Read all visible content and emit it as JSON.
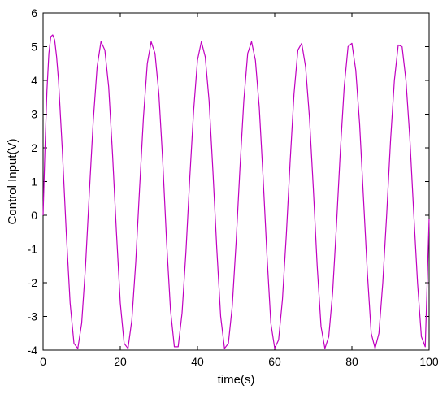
{
  "chart_data": {
    "type": "line",
    "title": "",
    "xlabel": "time(s)",
    "ylabel": "Control Input(V)",
    "xlim": [
      0,
      100
    ],
    "ylim": [
      -4,
      6
    ],
    "x_ticks": [
      0,
      20,
      40,
      60,
      80,
      100
    ],
    "y_ticks": [
      -4,
      -3,
      -2,
      -1,
      0,
      1,
      2,
      3,
      4,
      5,
      6
    ],
    "x_tick_labels": [
      "0",
      "20",
      "40",
      "60",
      "80",
      "100"
    ],
    "y_tick_labels": [
      "-4",
      "-3",
      "-2",
      "-1",
      "0",
      "1",
      "2",
      "3",
      "4",
      "5",
      "6"
    ],
    "grid": false,
    "legend": "none",
    "series": [
      {
        "color": "#c000c0",
        "x": [
          0,
          0.5,
          1,
          1.5,
          2,
          2.5,
          3,
          3.5,
          4,
          5,
          6,
          7,
          8,
          9,
          10,
          11,
          12,
          13,
          14,
          15,
          16,
          17,
          18,
          19,
          20,
          21,
          22,
          23,
          24,
          25,
          26,
          27,
          28,
          29,
          30,
          31,
          32,
          33,
          34,
          35,
          36,
          37,
          38,
          39,
          40,
          41,
          42,
          43,
          44,
          45,
          46,
          47,
          48,
          49,
          50,
          51,
          52,
          53,
          54,
          55,
          56,
          57,
          58,
          59,
          60,
          61,
          62,
          63,
          64,
          65,
          66,
          67,
          68,
          69,
          70,
          71,
          72,
          73,
          74,
          75,
          76,
          77,
          78,
          79,
          80,
          81,
          82,
          83,
          84,
          85,
          86,
          87,
          88,
          89,
          90,
          91,
          92,
          93,
          94,
          95,
          96,
          97,
          98,
          99,
          100
        ],
        "y": [
          0.0,
          2.0,
          3.7,
          4.8,
          5.3,
          5.35,
          5.2,
          4.7,
          4.0,
          1.9,
          -0.5,
          -2.6,
          -3.8,
          -3.95,
          -3.2,
          -1.5,
          0.7,
          2.8,
          4.4,
          5.15,
          4.9,
          3.8,
          1.8,
          -0.5,
          -2.6,
          -3.8,
          -3.95,
          -3.1,
          -1.4,
          0.8,
          2.9,
          4.5,
          5.15,
          4.8,
          3.6,
          1.6,
          -0.8,
          -2.8,
          -3.9,
          -3.9,
          -2.9,
          -1.1,
          1.1,
          3.1,
          4.6,
          5.15,
          4.7,
          3.4,
          1.3,
          -1.0,
          -3.0,
          -3.95,
          -3.8,
          -2.7,
          -0.8,
          1.4,
          3.4,
          4.8,
          5.15,
          4.6,
          3.2,
          1.1,
          -1.2,
          -3.2,
          -3.95,
          -3.7,
          -2.5,
          -0.6,
          1.6,
          3.6,
          4.9,
          5.1,
          4.4,
          2.9,
          0.8,
          -1.5,
          -3.3,
          -3.95,
          -3.6,
          -2.3,
          -0.3,
          1.9,
          3.8,
          5.0,
          5.1,
          4.3,
          2.7,
          0.5,
          -1.7,
          -3.5,
          -3.95,
          -3.5,
          -2.0,
          0.0,
          2.2,
          4.0,
          5.05,
          5.0,
          4.0,
          2.3,
          0.1,
          -2.0,
          -3.6,
          -3.9,
          -0.1
        ]
      }
    ]
  }
}
